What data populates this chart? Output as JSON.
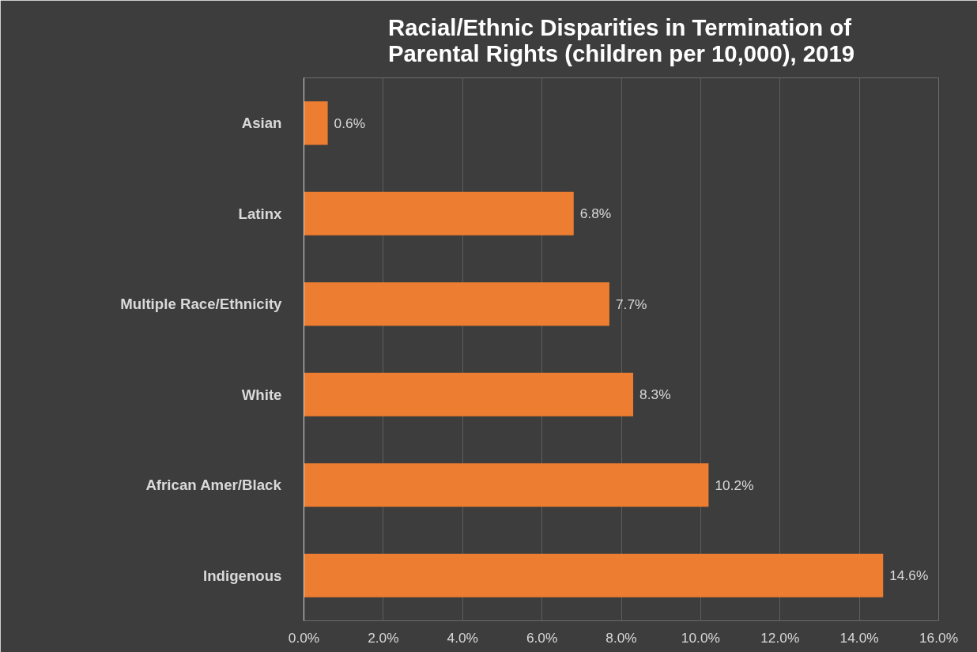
{
  "chart_data": {
    "type": "bar",
    "orientation": "horizontal",
    "title": "Racial/Ethnic Disparities in Termination of Parental Rights (children per 10,000), 2019",
    "categories": [
      "Asian",
      "Latinx",
      "Multiple Race/Ethnicity",
      "White",
      "African Amer/Black",
      "Indigenous"
    ],
    "values": [
      0.6,
      6.8,
      7.7,
      8.3,
      10.2,
      14.6
    ],
    "value_labels": [
      "0.6%",
      "6.8%",
      "7.7%",
      "8.3%",
      "10.2%",
      "14.6%"
    ],
    "color": "#ed7d31",
    "xlim": [
      0,
      16
    ],
    "xticks": [
      {
        "value": 0,
        "label": "0.0%"
      },
      {
        "value": 2,
        "label": "2.0%"
      },
      {
        "value": 4,
        "label": "4.0%"
      },
      {
        "value": 6,
        "label": "6.0%"
      },
      {
        "value": 8,
        "label": "8.0%"
      },
      {
        "value": 10,
        "label": "10.0%"
      },
      {
        "value": 12,
        "label": "12.0%"
      },
      {
        "value": 14,
        "label": "14.0%"
      },
      {
        "value": 16,
        "label": "16.0%"
      }
    ],
    "grid": "x"
  }
}
